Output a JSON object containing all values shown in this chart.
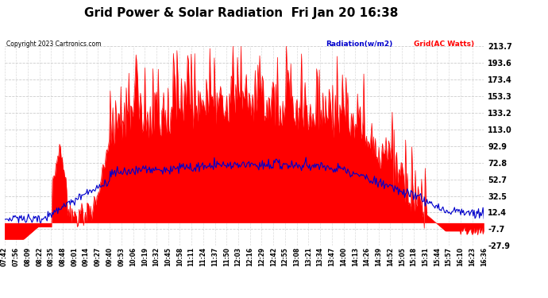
{
  "title": "Grid Power & Solar Radiation  Fri Jan 20 16:38",
  "copyright": "Copyright 2023 Cartronics.com",
  "legend_radiation": "Radiation(w/m2)",
  "legend_grid": "Grid(AC Watts)",
  "ymin": -27.9,
  "ymax": 213.7,
  "yticks": [
    213.7,
    193.6,
    173.4,
    153.3,
    133.2,
    113.0,
    92.9,
    72.8,
    52.7,
    32.5,
    12.4,
    -7.7,
    -27.9
  ],
  "background_color": "#ffffff",
  "plot_bg_color": "#ffffff",
  "grid_color": "#cccccc",
  "bar_color": "#ff0000",
  "line_color": "#0000cc",
  "title_fontsize": 11,
  "label_fontsize": 7,
  "xtick_labels": [
    "07:42",
    "07:56",
    "08:09",
    "08:22",
    "08:35",
    "08:48",
    "09:01",
    "09:14",
    "09:27",
    "09:40",
    "09:53",
    "10:06",
    "10:19",
    "10:32",
    "10:45",
    "10:58",
    "11:11",
    "11:24",
    "11:37",
    "11:50",
    "12:03",
    "12:16",
    "12:29",
    "12:42",
    "12:55",
    "13:08",
    "13:21",
    "13:34",
    "13:47",
    "14:00",
    "14:13",
    "14:26",
    "14:39",
    "14:52",
    "15:05",
    "15:18",
    "15:31",
    "15:44",
    "15:57",
    "16:10",
    "16:23",
    "16:36"
  ]
}
